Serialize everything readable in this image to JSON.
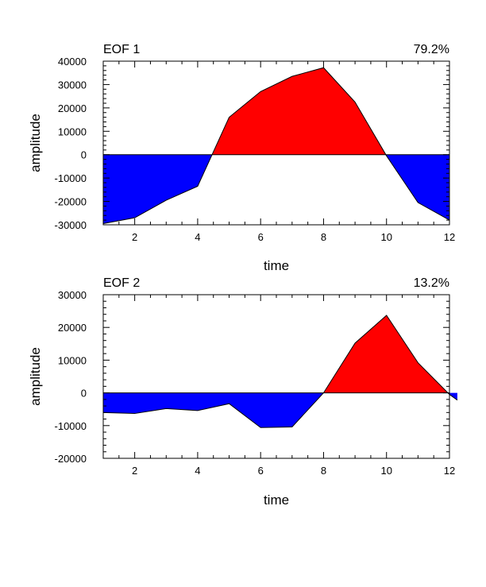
{
  "colors": {
    "positive": "#ff0000",
    "negative": "#0000ff",
    "outline": "#000000"
  },
  "chart_data": [
    {
      "type": "area",
      "title": "EOF 1",
      "right_title": "79.2%",
      "xlabel": "time",
      "ylabel": "amplitude",
      "xlim": [
        1,
        12
      ],
      "ylim": [
        -30000,
        40000
      ],
      "x_ticks": [
        2,
        4,
        6,
        8,
        10,
        12
      ],
      "y_ticks": [
        -30000,
        -20000,
        -10000,
        0,
        10000,
        20000,
        30000,
        40000
      ],
      "baseline": 0,
      "x": [
        1,
        2,
        3,
        4,
        5,
        6,
        7,
        8,
        9,
        10,
        11,
        12
      ],
      "values": [
        -29500,
        -27000,
        -19500,
        -13500,
        16000,
        27000,
        33500,
        37200,
        22500,
        -500,
        -20500,
        -28000
      ]
    },
    {
      "type": "area",
      "title": "EOF 2",
      "right_title": "13.2%",
      "xlabel": "time",
      "ylabel": "amplitude",
      "xlim": [
        1,
        12
      ],
      "ylim": [
        -20000,
        30000
      ],
      "x_ticks": [
        2,
        4,
        6,
        8,
        10,
        12
      ],
      "y_ticks": [
        -20000,
        -10000,
        0,
        10000,
        20000,
        30000
      ],
      "baseline": 0,
      "x": [
        1,
        2,
        3,
        4,
        5,
        6,
        7,
        8,
        9,
        10,
        11,
        12
      ],
      "values": [
        -6000,
        -6300,
        -4800,
        -5400,
        -3300,
        -10600,
        -10400,
        0,
        15200,
        23700,
        9200,
        -500
      ]
    }
  ],
  "extra_endpoint_panel2": {
    "x": 12.25,
    "value": -2200
  }
}
